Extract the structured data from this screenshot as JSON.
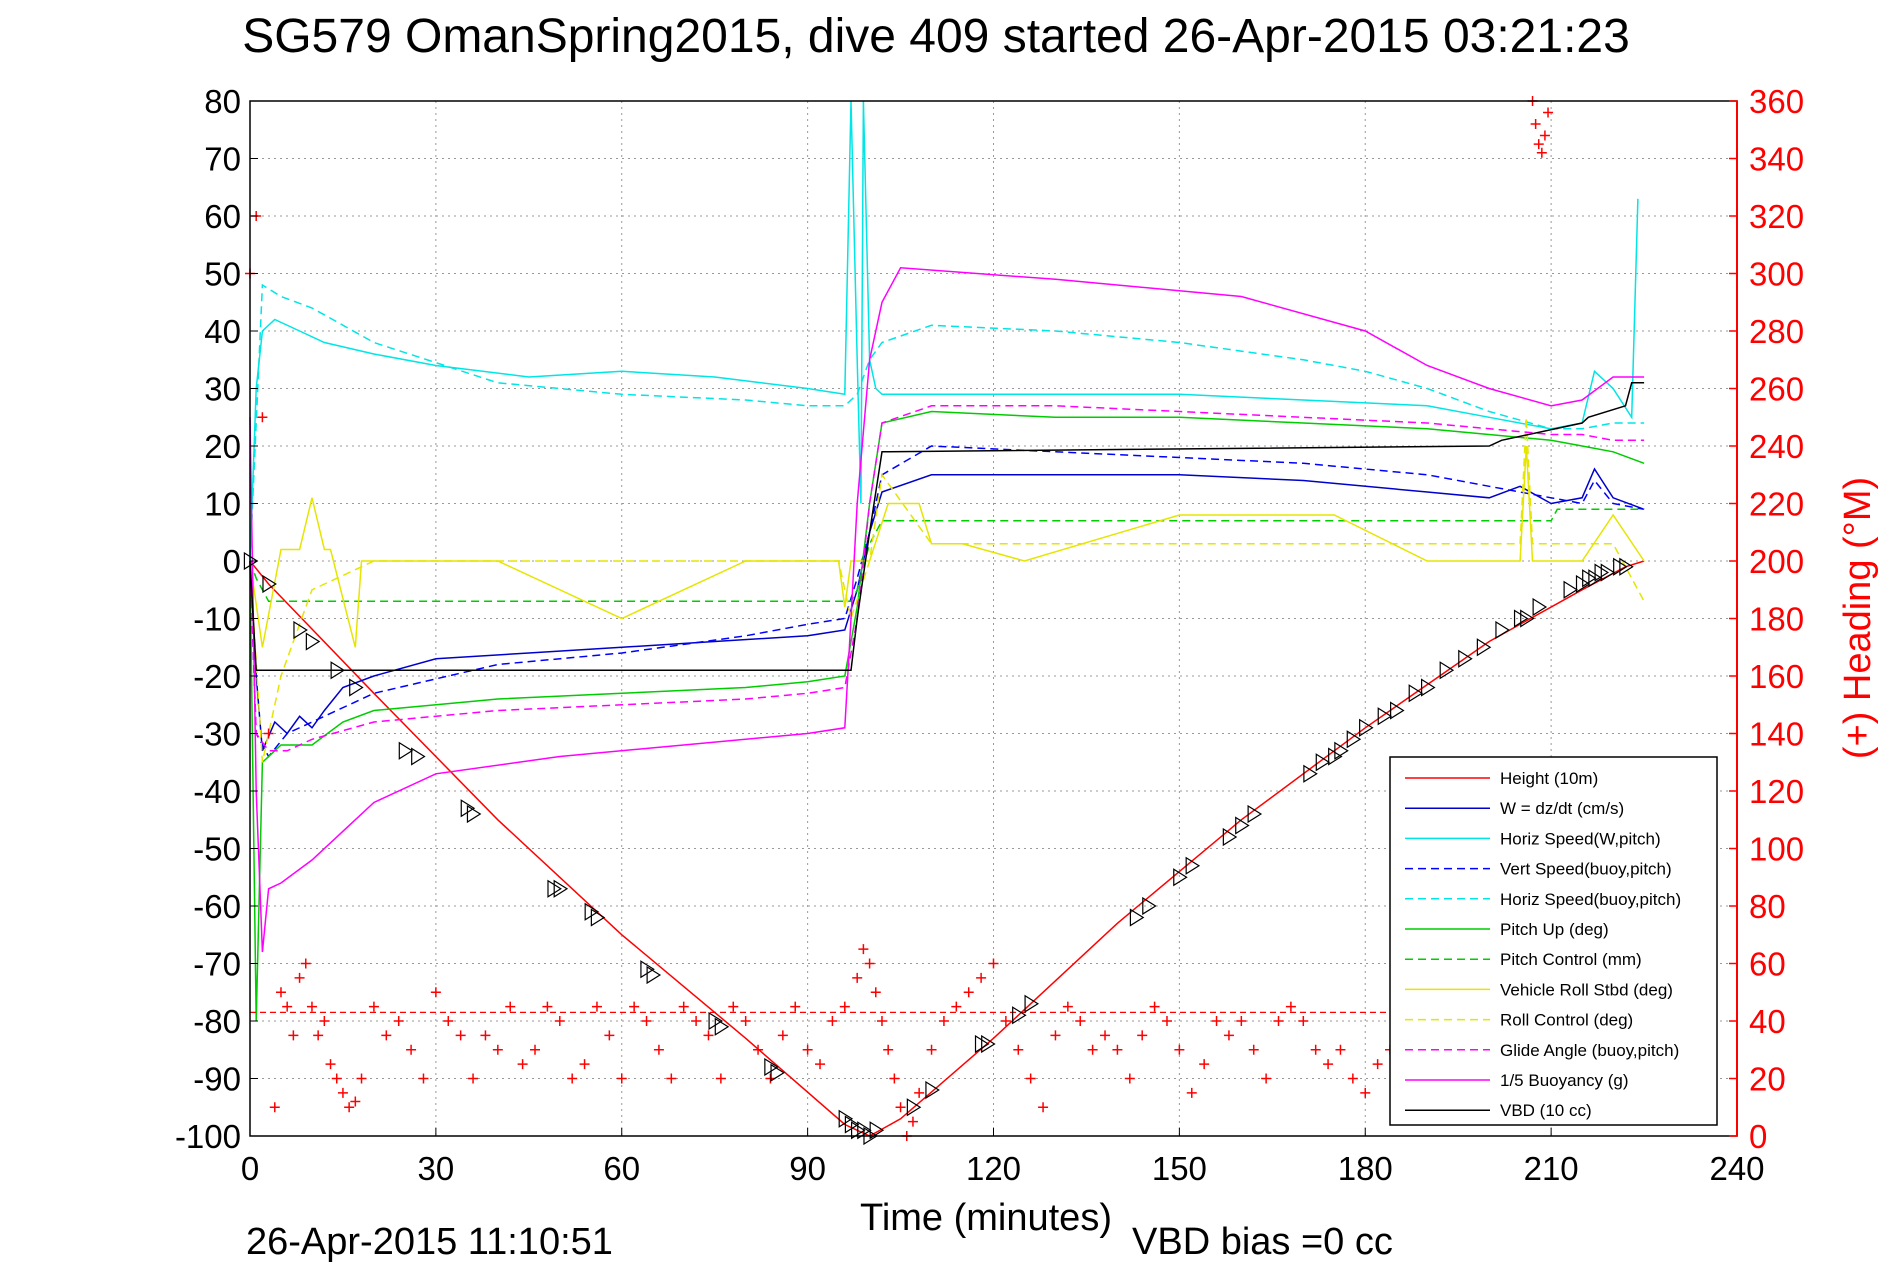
{
  "chart_data": {
    "type": "line",
    "title": "SG579 OmanSpring2015, dive 409 started 26-Apr-2015 03:21:23",
    "xlabel": "Time (minutes)",
    "ylabel_right": "(+) Heading (°M)",
    "xlim": [
      0,
      240
    ],
    "ylim": [
      -100,
      80
    ],
    "ylim_right": [
      0,
      360
    ],
    "xticks": [
      "0",
      "30",
      "60",
      "90",
      "120",
      "150",
      "180",
      "210",
      "240"
    ],
    "yticks": [
      "80",
      "70",
      "60",
      "50",
      "40",
      "30",
      "20",
      "10",
      "0",
      "-10",
      "-20",
      "-30",
      "-40",
      "-50",
      "-60",
      "-70",
      "-80",
      "-90",
      "-100"
    ],
    "yticks_right": [
      "360",
      "340",
      "320",
      "300",
      "280",
      "260",
      "240",
      "220",
      "200",
      "180",
      "160",
      "140",
      "120",
      "100",
      "80",
      "60",
      "40",
      "20",
      "0"
    ],
    "grid": true,
    "legend_position": "bottom-right",
    "footer_left": "26-Apr-2015 11:10:51",
    "footer_right": "VBD bias =0 cc",
    "series": [
      {
        "name": "Height (10m)",
        "color": "#ff0000",
        "style": "solid",
        "x": [
          0,
          3,
          20,
          40,
          60,
          80,
          96,
          100,
          105,
          120,
          140,
          160,
          180,
          200,
          215,
          222,
          225
        ],
        "y": [
          0,
          -4,
          -23,
          -45,
          -65,
          -83,
          -98,
          -100,
          -97,
          -83,
          -63,
          -45,
          -29,
          -14,
          -5,
          -1,
          0
        ]
      },
      {
        "name": "W = dz/dt (cm/s)",
        "color": "#0000cc",
        "style": "solid",
        "x": [
          0,
          1,
          2,
          4,
          6,
          8,
          10,
          12,
          15,
          20,
          30,
          45,
          60,
          75,
          90,
          96,
          98,
          100,
          102,
          110,
          130,
          150,
          170,
          190,
          200,
          205,
          210,
          215,
          217,
          220,
          225
        ],
        "y": [
          0,
          -20,
          -33,
          -28,
          -30,
          -27,
          -29,
          -26,
          -22,
          -20,
          -17,
          -16,
          -15,
          -14,
          -13,
          -12,
          -5,
          5,
          12,
          15,
          15,
          15,
          14,
          12,
          11,
          13,
          10,
          11,
          16,
          11,
          9
        ]
      },
      {
        "name": "Horiz Speed(W,pitch)",
        "color": "#00e5e5",
        "style": "solid",
        "x": [
          0,
          1,
          2,
          4,
          8,
          12,
          20,
          30,
          45,
          60,
          75,
          90,
          96,
          97,
          98,
          98.6,
          99,
          100,
          101,
          102,
          110,
          130,
          150,
          170,
          190,
          200,
          210,
          215,
          217,
          220,
          223,
          224
        ],
        "y": [
          0,
          30,
          40,
          42,
          40,
          38,
          36,
          34,
          32,
          33,
          32,
          30,
          29,
          80,
          35,
          10,
          80,
          35,
          30,
          29,
          29,
          29,
          29,
          28,
          27,
          25,
          23,
          24,
          33,
          30,
          25,
          63
        ]
      },
      {
        "name": "Vert Speed(buoy,pitch)",
        "color": "#0000ff",
        "style": "dashed",
        "x": [
          0,
          1,
          3,
          6,
          10,
          20,
          40,
          60,
          80,
          90,
          96,
          98,
          100,
          102,
          110,
          130,
          150,
          170,
          190,
          200,
          210,
          215,
          217,
          220,
          225
        ],
        "y": [
          0,
          -30,
          -34,
          -30,
          -28,
          -23,
          -18,
          -16,
          -13,
          -11,
          -10,
          -3,
          5,
          15,
          20,
          19,
          18,
          17,
          15,
          13,
          11,
          10,
          14,
          10,
          9
        ]
      },
      {
        "name": "Horiz Speed(buoy,pitch)",
        "color": "#00e5e5",
        "style": "dashed",
        "x": [
          0,
          2,
          5,
          10,
          20,
          40,
          60,
          80,
          90,
          96,
          98,
          100,
          102,
          110,
          130,
          150,
          170,
          180,
          190,
          200,
          210,
          215,
          220,
          225
        ],
        "y": [
          0,
          48,
          46,
          44,
          38,
          31,
          29,
          28,
          27,
          27,
          29,
          35,
          38,
          41,
          40,
          38,
          35,
          33,
          30,
          26,
          23,
          23,
          24,
          24
        ]
      },
      {
        "name": "Pitch Up (deg)",
        "color": "#00cc00",
        "style": "solid",
        "x": [
          0,
          1,
          2,
          5,
          10,
          15,
          20,
          40,
          60,
          80,
          90,
          96,
          98,
          100,
          102,
          110,
          130,
          150,
          170,
          190,
          210,
          215,
          220,
          225
        ],
        "y": [
          0,
          -80,
          -35,
          -32,
          -32,
          -28,
          -26,
          -24,
          -23,
          -22,
          -21,
          -20,
          -8,
          10,
          24,
          26,
          25,
          25,
          24,
          23,
          21,
          20,
          19,
          17
        ]
      },
      {
        "name": "Pitch Control (mm)",
        "color": "#00cc00",
        "style": "dashed",
        "x": [
          0,
          1,
          3,
          97,
          98,
          100,
          102,
          150,
          210,
          211,
          225
        ],
        "y": [
          0,
          -3,
          -7,
          -7,
          -5,
          3,
          7,
          7,
          7,
          9,
          9
        ]
      },
      {
        "name": "Vehicle Roll Stbd (deg)",
        "color": "#e5e500",
        "style": "solid",
        "x": [
          0,
          2,
          5,
          8,
          10,
          12,
          13,
          17,
          18,
          20,
          40,
          60,
          80,
          95,
          96,
          97,
          100,
          103,
          108,
          110,
          115,
          125,
          150,
          175,
          190,
          200,
          205,
          206,
          207,
          210,
          215,
          220,
          225
        ],
        "y": [
          0,
          -15,
          2,
          2,
          11,
          2,
          2,
          -15,
          0,
          0,
          0,
          -10,
          0,
          0,
          -8,
          0,
          0,
          10,
          10,
          3,
          3,
          0,
          8,
          8,
          0,
          0,
          0,
          20,
          0,
          0,
          0,
          8,
          0
        ]
      },
      {
        "name": "Roll Control (deg)",
        "color": "#e5e500",
        "style": "dashed",
        "x": [
          0,
          2,
          5,
          10,
          20,
          40,
          60,
          90,
          95,
          97,
          100,
          102,
          110,
          150,
          190,
          205,
          206,
          207,
          220,
          225
        ],
        "y": [
          0,
          -35,
          -20,
          -5,
          0,
          0,
          0,
          0,
          0,
          -10,
          0,
          15,
          3,
          3,
          3,
          3,
          25,
          3,
          3,
          -7
        ]
      },
      {
        "name": "Glide Angle (buoy,pitch)",
        "color": "#ff00ff",
        "style": "dashed",
        "x": [
          0,
          1,
          3,
          6,
          10,
          20,
          40,
          60,
          80,
          90,
          96,
          98,
          100,
          102,
          110,
          130,
          150,
          170,
          190,
          210,
          215,
          220,
          225
        ],
        "y": [
          0,
          -30,
          -33,
          -33,
          -31,
          -28,
          -26,
          -25,
          -24,
          -23,
          -22,
          -10,
          10,
          24,
          27,
          27,
          26,
          25,
          24,
          22,
          22,
          21,
          21
        ]
      },
      {
        "name": "1/5 Buoyancy (g)",
        "color": "#ff00ff",
        "style": "solid",
        "x": [
          0,
          1,
          2,
          3,
          5,
          10,
          15,
          20,
          30,
          50,
          70,
          90,
          96,
          97,
          98,
          100,
          102,
          105,
          130,
          160,
          180,
          190,
          200,
          210,
          215,
          220,
          225
        ],
        "y": [
          25,
          -40,
          -68,
          -57,
          -56,
          -52,
          -47,
          -42,
          -37,
          -34,
          -32,
          -30,
          -29,
          -10,
          10,
          35,
          45,
          51,
          49,
          46,
          40,
          34,
          30,
          27,
          28,
          32,
          32
        ]
      },
      {
        "name": "VBD (10 cc)",
        "color": "#000000",
        "style": "solid",
        "x": [
          0,
          1,
          2,
          4,
          97,
          98,
          100,
          102,
          200,
          202,
          215,
          216,
          222,
          223,
          225
        ],
        "y": [
          0,
          -19,
          -19,
          -19,
          -19,
          -10,
          5,
          19,
          20,
          21,
          24,
          25,
          27,
          31,
          31
        ]
      }
    ],
    "heading_marker": "+",
    "heading_color": "#ff0000",
    "heading_reference_deg": 43,
    "heading": {
      "x": [
        0,
        1,
        2,
        3,
        4,
        5,
        6,
        7,
        8,
        9,
        10,
        11,
        12,
        13,
        14,
        15,
        16,
        17,
        18,
        20,
        22,
        24,
        26,
        28,
        30,
        32,
        34,
        36,
        38,
        40,
        42,
        44,
        46,
        48,
        50,
        52,
        54,
        56,
        58,
        60,
        62,
        64,
        66,
        68,
        70,
        72,
        74,
        76,
        78,
        80,
        82,
        84,
        86,
        88,
        90,
        92,
        94,
        96,
        98,
        99,
        100,
        101,
        102,
        103,
        104,
        105,
        106,
        107,
        108,
        110,
        112,
        114,
        116,
        118,
        120,
        122,
        124,
        126,
        128,
        130,
        132,
        134,
        136,
        138,
        140,
        142,
        144,
        146,
        148,
        150,
        152,
        154,
        156,
        158,
        160,
        162,
        164,
        166,
        168,
        170,
        172,
        174,
        176,
        178,
        180,
        182,
        184
      ],
      "y": [
        300,
        320,
        250,
        140,
        10,
        50,
        45,
        35,
        55,
        60,
        45,
        35,
        40,
        25,
        20,
        15,
        10,
        12,
        20,
        45,
        35,
        40,
        30,
        20,
        50,
        40,
        35,
        20,
        35,
        30,
        45,
        25,
        30,
        45,
        40,
        20,
        25,
        45,
        35,
        20,
        45,
        40,
        30,
        20,
        45,
        40,
        35,
        20,
        45,
        40,
        30,
        20,
        35,
        45,
        30,
        25,
        40,
        45,
        55,
        65,
        60,
        50,
        40,
        30,
        20,
        10,
        0,
        5,
        15,
        30,
        40,
        45,
        50,
        55,
        60,
        40,
        30,
        20,
        10,
        35,
        45,
        40,
        30,
        35,
        30,
        20,
        35,
        45,
        40,
        30,
        15,
        25,
        40,
        35,
        40,
        30,
        20,
        40,
        45,
        40,
        30,
        25,
        30,
        20,
        15,
        25,
        30
      ]
    },
    "heading_top": {
      "x": [
        207,
        207.5,
        208,
        208.5,
        209,
        209.5
      ],
      "y": [
        360,
        352,
        345,
        342,
        348,
        356
      ]
    },
    "triangles": {
      "x": [
        0,
        3,
        8,
        10,
        14,
        17,
        25,
        27,
        35,
        36,
        49,
        50,
        55,
        56,
        64,
        65,
        75,
        76,
        84,
        85,
        96,
        97,
        98,
        99,
        100,
        101,
        107,
        110,
        118,
        119,
        124,
        126,
        143,
        145,
        150,
        152,
        158,
        160,
        162,
        171,
        173,
        175,
        176,
        178,
        180,
        183,
        185,
        188,
        190,
        193,
        196,
        199,
        202,
        205,
        206,
        208,
        213,
        215,
        216,
        217,
        218,
        219,
        221,
        222
      ],
      "y": [
        0,
        -4,
        -12,
        -14,
        -19,
        -22,
        -33,
        -34,
        -43,
        -44,
        -57,
        -57,
        -61,
        -62,
        -71,
        -72,
        -80,
        -81,
        -88,
        -89,
        -97,
        -98,
        -99,
        -99,
        -100,
        -99,
        -95,
        -92,
        -84,
        -84,
        -79,
        -77,
        -62,
        -60,
        -55,
        -53,
        -48,
        -46,
        -44,
        -37,
        -35,
        -34,
        -33,
        -31,
        -29,
        -27,
        -26,
        -23,
        -22,
        -19,
        -17,
        -15,
        -12,
        -10,
        -10,
        -8,
        -5,
        -4,
        -3,
        -3,
        -2,
        -2,
        -1,
        -1
      ]
    },
    "legend_entries": [
      "Height (10m)",
      "W = dz/dt (cm/s)",
      "Horiz Speed(W,pitch)",
      "Vert Speed(buoy,pitch)",
      "Horiz Speed(buoy,pitch)",
      "Pitch Up (deg)",
      "Pitch Control (mm)",
      "Vehicle Roll Stbd (deg)",
      "Roll Control (deg)",
      "Glide Angle (buoy,pitch)",
      "1/5 Buoyancy (g)",
      "VBD (10 cc)"
    ]
  }
}
